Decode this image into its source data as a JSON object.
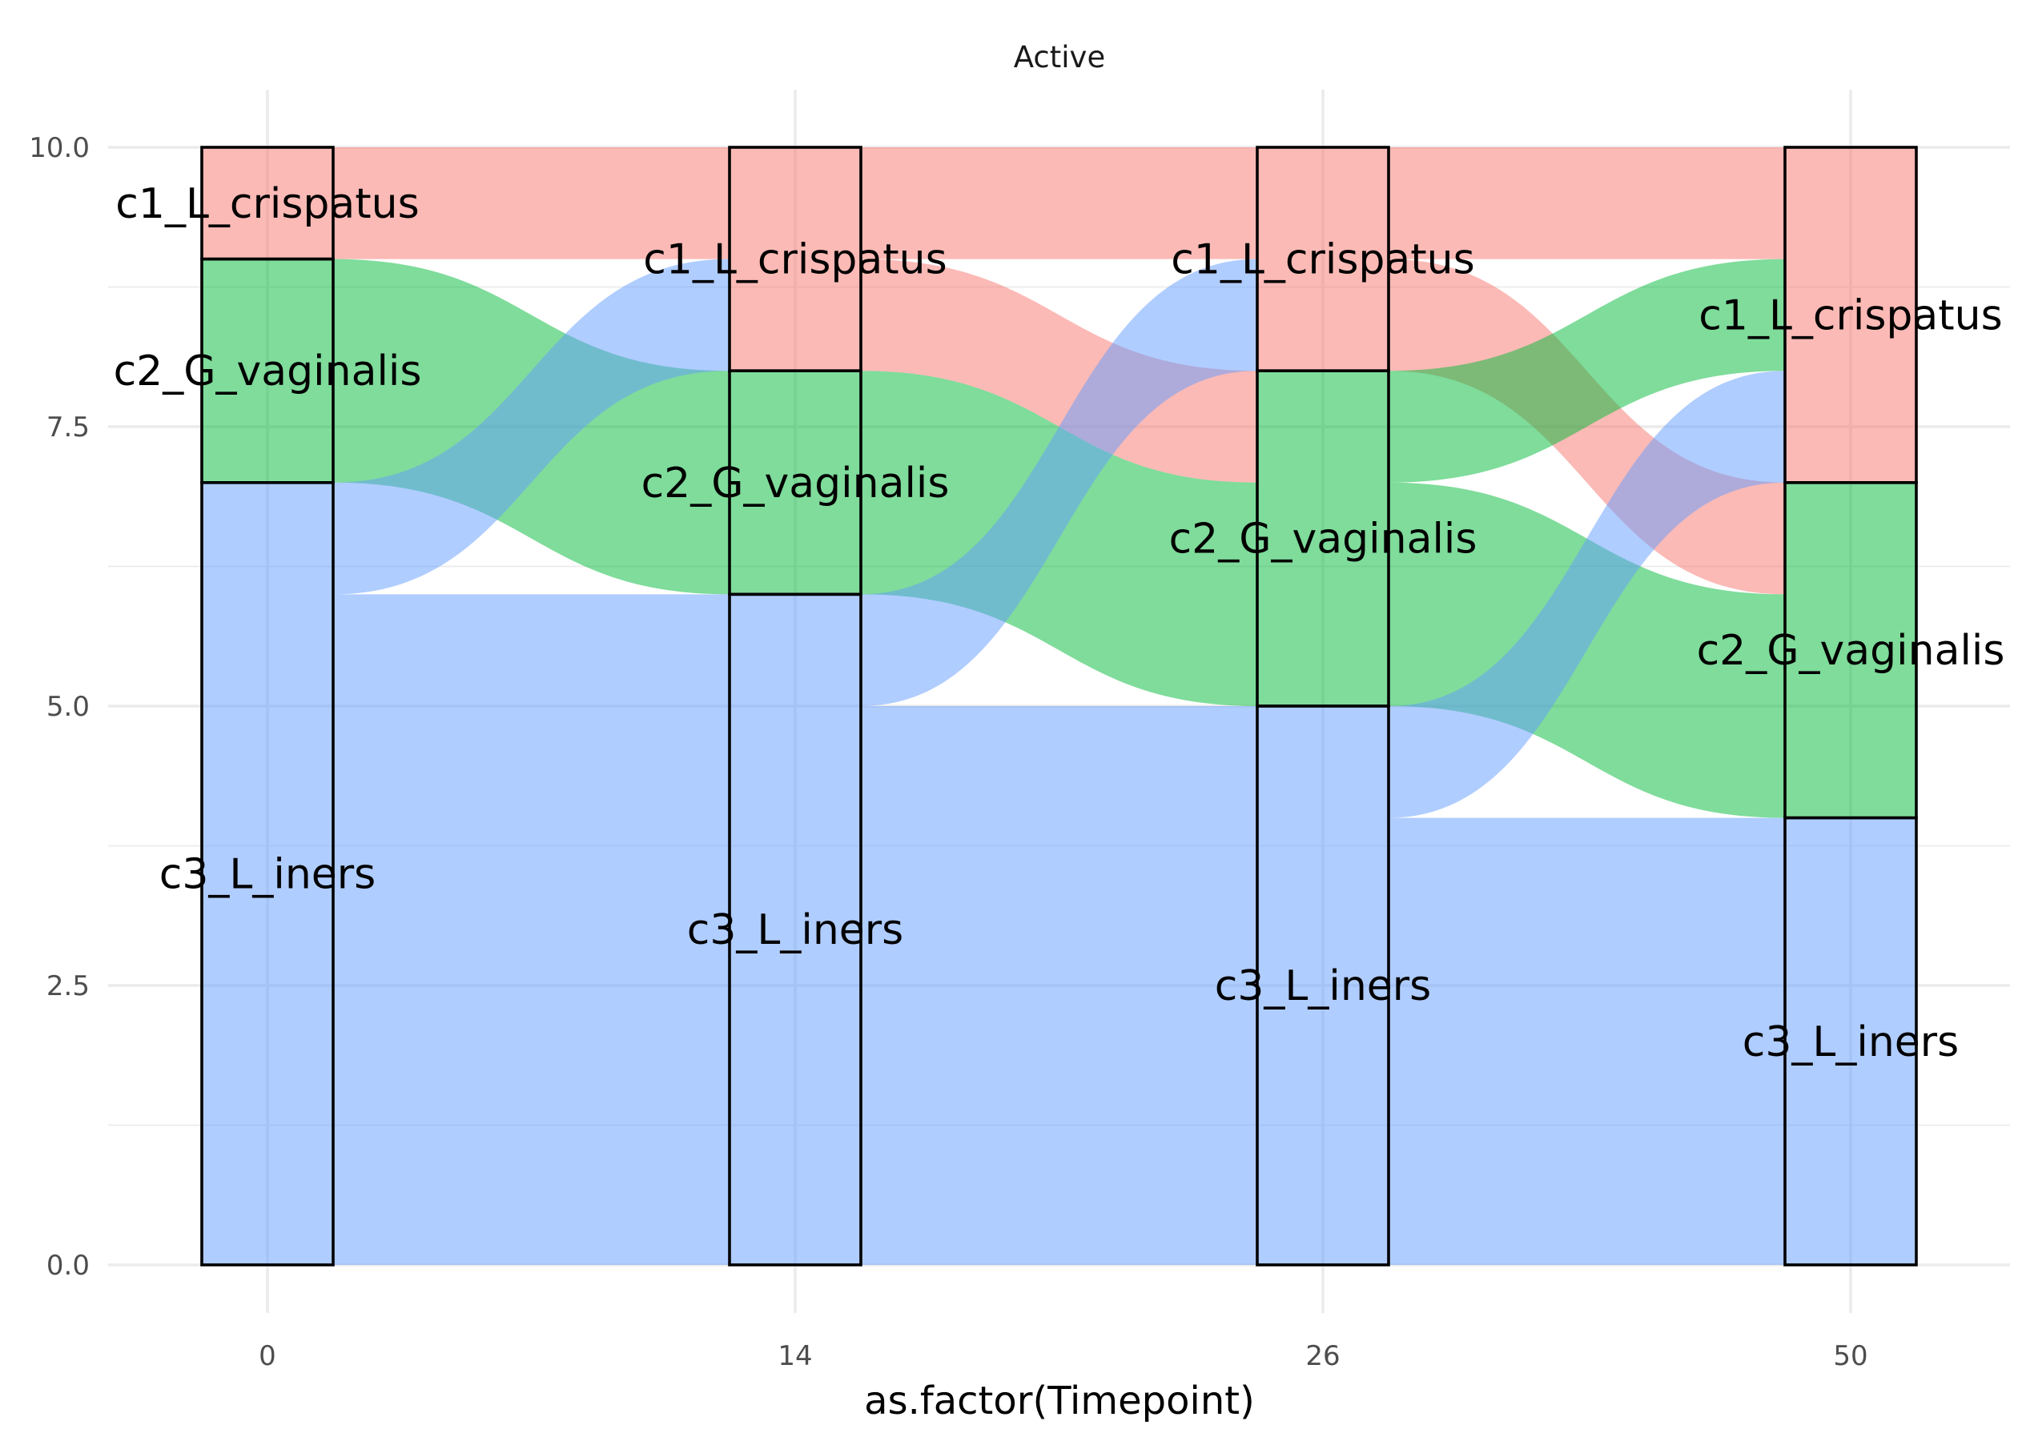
{
  "chart_data": {
    "type": "alluvial",
    "title": "Active",
    "xlabel": "as.factor(Timepoint)",
    "ylabel": "",
    "ylim": [
      0,
      10
    ],
    "y_ticks": [
      "0.0",
      "2.5",
      "5.0",
      "7.5",
      "10.0"
    ],
    "grid": true,
    "legend": "none",
    "categories": [
      "0",
      "14",
      "26",
      "50"
    ],
    "colors": {
      "c1_L_crispatus": "#F8766D",
      "c2_G_vaginalis": "#00BA38",
      "c3_L_iners": "#619CFF"
    },
    "strata": [
      {
        "x": "0",
        "counts": {
          "c1_L_crispatus": 1,
          "c2_G_vaginalis": 2,
          "c3_L_iners": 7
        }
      },
      {
        "x": "14",
        "counts": {
          "c1_L_crispatus": 2,
          "c2_G_vaginalis": 2,
          "c3_L_iners": 6
        }
      },
      {
        "x": "26",
        "counts": {
          "c1_L_crispatus": 2,
          "c2_G_vaginalis": 3,
          "c3_L_iners": 5
        }
      },
      {
        "x": "50",
        "counts": {
          "c1_L_crispatus": 3,
          "c2_G_vaginalis": 3,
          "c3_L_iners": 4
        }
      }
    ],
    "flows": [
      {
        "from_x": "0",
        "to_x": "14",
        "from": "c1_L_crispatus",
        "to": "c1_L_crispatus",
        "value": 1
      },
      {
        "from_x": "0",
        "to_x": "14",
        "from": "c2_G_vaginalis",
        "to": "c2_G_vaginalis",
        "value": 2
      },
      {
        "from_x": "0",
        "to_x": "14",
        "from": "c3_L_iners",
        "to": "c1_L_crispatus",
        "value": 1
      },
      {
        "from_x": "0",
        "to_x": "14",
        "from": "c3_L_iners",
        "to": "c3_L_iners",
        "value": 6
      },
      {
        "from_x": "14",
        "to_x": "26",
        "from": "c1_L_crispatus",
        "to": "c1_L_crispatus",
        "value": 1
      },
      {
        "from_x": "14",
        "to_x": "26",
        "from": "c1_L_crispatus",
        "to": "c2_G_vaginalis",
        "value": 1
      },
      {
        "from_x": "14",
        "to_x": "26",
        "from": "c2_G_vaginalis",
        "to": "c2_G_vaginalis",
        "value": 2
      },
      {
        "from_x": "14",
        "to_x": "26",
        "from": "c3_L_iners",
        "to": "c1_L_crispatus",
        "value": 1
      },
      {
        "from_x": "14",
        "to_x": "26",
        "from": "c3_L_iners",
        "to": "c3_L_iners",
        "value": 5
      },
      {
        "from_x": "26",
        "to_x": "50",
        "from": "c1_L_crispatus",
        "to": "c1_L_crispatus",
        "value": 1
      },
      {
        "from_x": "26",
        "to_x": "50",
        "from": "c1_L_crispatus",
        "to": "c2_G_vaginalis",
        "value": 1
      },
      {
        "from_x": "26",
        "to_x": "50",
        "from": "c2_G_vaginalis",
        "to": "c1_L_crispatus",
        "value": 1
      },
      {
        "from_x": "26",
        "to_x": "50",
        "from": "c2_G_vaginalis",
        "to": "c2_G_vaginalis",
        "value": 2
      },
      {
        "from_x": "26",
        "to_x": "50",
        "from": "c3_L_iners",
        "to": "c1_L_crispatus",
        "value": 1
      },
      {
        "from_x": "26",
        "to_x": "50",
        "from": "c3_L_iners",
        "to": "c3_L_iners",
        "value": 4
      }
    ]
  }
}
